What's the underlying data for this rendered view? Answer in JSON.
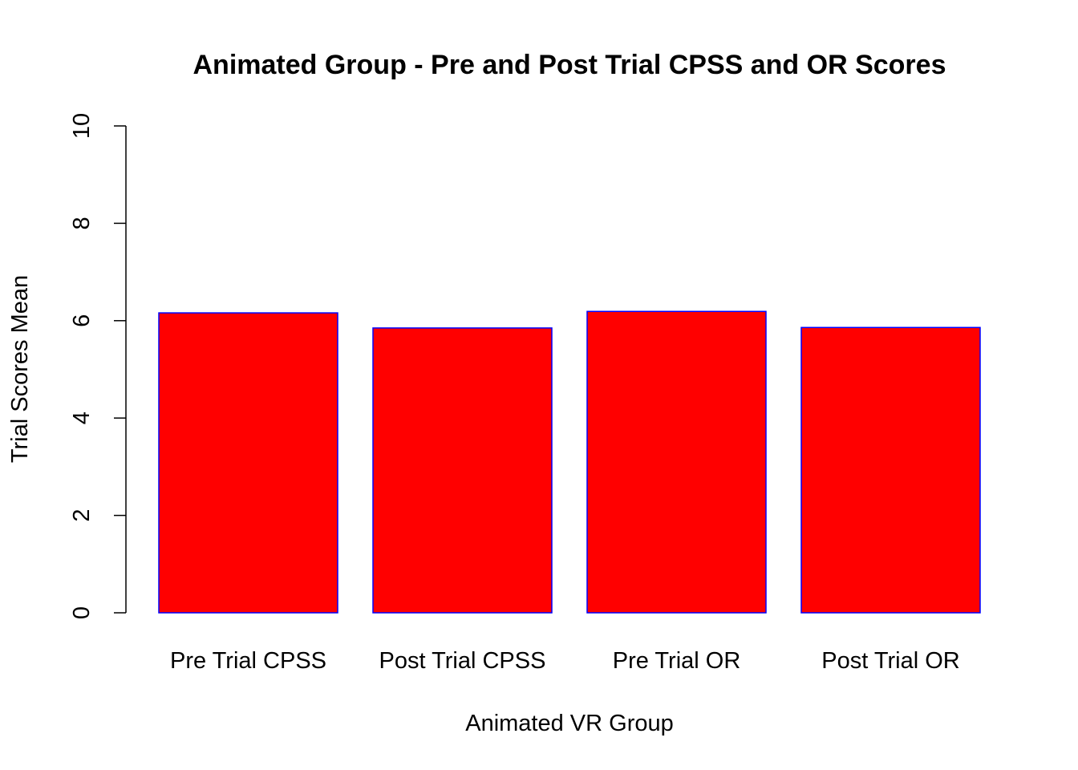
{
  "chart_data": {
    "type": "bar",
    "title": "Animated Group - Pre and Post Trial CPSS and OR Scores",
    "xlabel": "Animated VR Group",
    "ylabel": "Trial Scores Mean",
    "categories": [
      "Pre Trial CPSS",
      "Post Trial CPSS",
      "Pre Trial OR",
      "Post Trial OR"
    ],
    "values": [
      6.16,
      5.85,
      6.19,
      5.86
    ],
    "ylim": [
      0,
      10
    ],
    "yticks": [
      0,
      2,
      4,
      6,
      8,
      10
    ],
    "bar_fill": "#ff0000",
    "bar_border": "#0000ff",
    "grid": false,
    "legend": "none"
  }
}
